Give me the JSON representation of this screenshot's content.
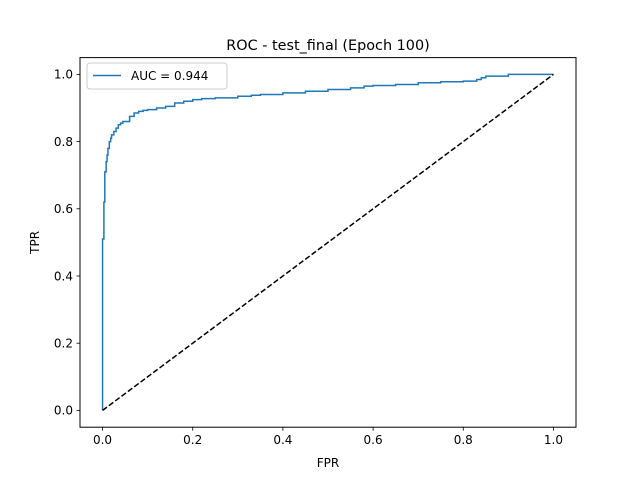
{
  "chart_data": {
    "type": "line",
    "title": "ROC - test_final (Epoch 100)",
    "xlabel": "FPR",
    "ylabel": "TPR",
    "xlim": [
      -0.05,
      1.05
    ],
    "ylim": [
      -0.05,
      1.05
    ],
    "x_ticks": [
      0.0,
      0.2,
      0.4,
      0.6,
      0.8,
      1.0
    ],
    "x_tick_labels": [
      "0.0",
      "0.2",
      "0.4",
      "0.6",
      "0.8",
      "1.0"
    ],
    "y_ticks": [
      0.0,
      0.2,
      0.4,
      0.6,
      0.8,
      1.0
    ],
    "y_tick_labels": [
      "0.0",
      "0.2",
      "0.4",
      "0.6",
      "0.8",
      "1.0"
    ],
    "grid": false,
    "legend_position": "top-left",
    "series": [
      {
        "name": "AUC = 0.944",
        "color": "#1f77b4",
        "style": "solid",
        "x": [
          0.0,
          0.0,
          0.003,
          0.005,
          0.008,
          0.01,
          0.012,
          0.015,
          0.018,
          0.02,
          0.025,
          0.03,
          0.035,
          0.04,
          0.045,
          0.05,
          0.06,
          0.07,
          0.08,
          0.09,
          0.1,
          0.12,
          0.14,
          0.16,
          0.18,
          0.2,
          0.22,
          0.25,
          0.3,
          0.33,
          0.35,
          0.4,
          0.45,
          0.5,
          0.55,
          0.58,
          0.6,
          0.65,
          0.7,
          0.75,
          0.8,
          0.83,
          0.84,
          0.85,
          0.9,
          0.95,
          0.98,
          1.0
        ],
        "y": [
          0.0,
          0.51,
          0.62,
          0.71,
          0.74,
          0.76,
          0.78,
          0.8,
          0.81,
          0.82,
          0.83,
          0.84,
          0.85,
          0.855,
          0.86,
          0.86,
          0.875,
          0.885,
          0.89,
          0.893,
          0.895,
          0.9,
          0.905,
          0.915,
          0.92,
          0.925,
          0.928,
          0.93,
          0.935,
          0.938,
          0.94,
          0.945,
          0.95,
          0.955,
          0.96,
          0.965,
          0.967,
          0.97,
          0.975,
          0.978,
          0.98,
          0.985,
          0.99,
          0.995,
          1.0,
          1.0,
          1.0,
          1.0
        ]
      },
      {
        "name": "",
        "color": "#000000",
        "style": "dashed",
        "x": [
          0.0,
          1.0
        ],
        "y": [
          0.0,
          1.0
        ]
      }
    ]
  }
}
